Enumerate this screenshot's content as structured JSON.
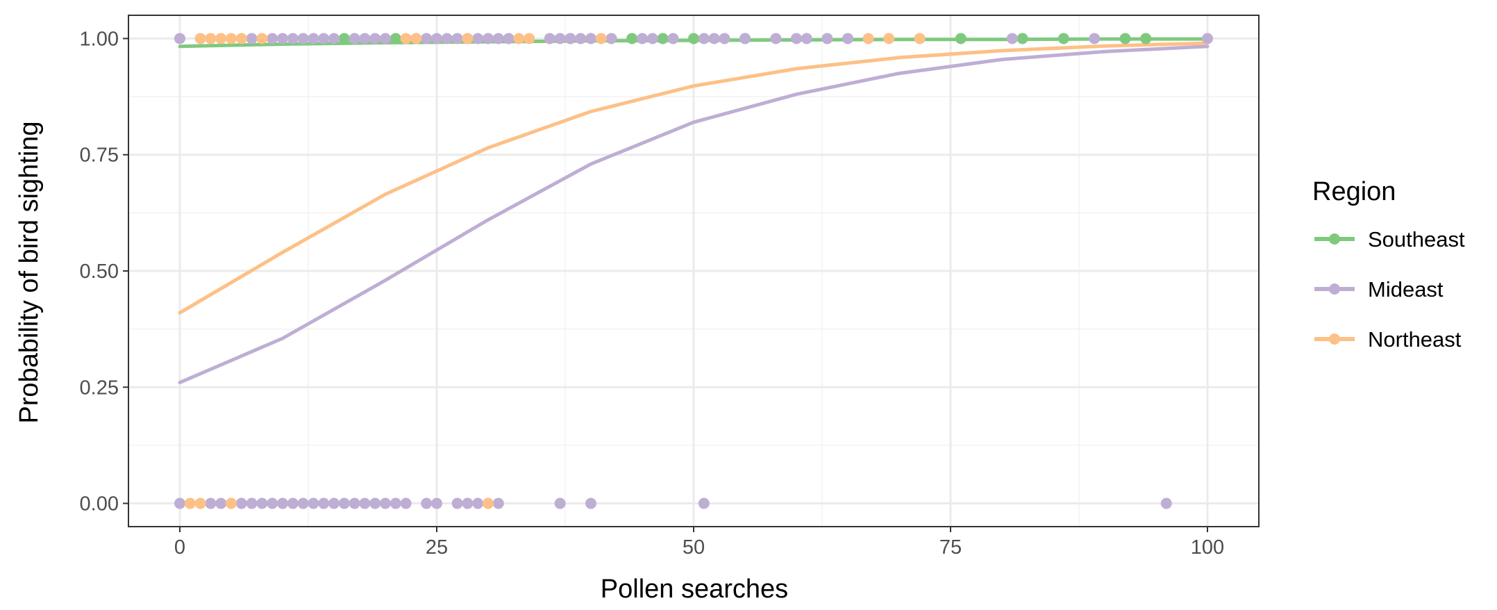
{
  "chart_data": {
    "type": "scatter",
    "title": "",
    "xlabel": "Pollen searches",
    "ylabel": "Probability of bird sighting",
    "xlim": [
      -5,
      105
    ],
    "ylim": [
      -0.05,
      1.05
    ],
    "x_ticks": [
      0,
      25,
      50,
      75,
      100
    ],
    "x_tick_labels": [
      "0",
      "25",
      "50",
      "75",
      "100"
    ],
    "y_ticks": [
      0,
      0.25,
      0.5,
      0.75,
      1
    ],
    "y_tick_labels": [
      "0.00",
      "0.25",
      "0.50",
      "0.75",
      "1.00"
    ],
    "grid": true,
    "legend": {
      "title": "Region",
      "position": "right"
    },
    "series": [
      {
        "name": "Southeast",
        "color": "#7fc97f",
        "curve": {
          "x": [
            0,
            10,
            20,
            30,
            40,
            50,
            60,
            70,
            80,
            90,
            100
          ],
          "y": [
            0.983,
            0.988,
            0.991,
            0.993,
            0.995,
            0.996,
            0.997,
            0.998,
            0.998,
            0.999,
            0.999
          ]
        },
        "points": {
          "x": [
            16,
            21,
            38,
            44,
            47,
            50,
            55,
            76,
            82,
            86,
            92,
            94
          ],
          "y": [
            1,
            1,
            1,
            1,
            1,
            1,
            1,
            1,
            1,
            1,
            1,
            1
          ]
        }
      },
      {
        "name": "Mideast",
        "color": "#beaed4",
        "curve": {
          "x": [
            0,
            10,
            20,
            30,
            40,
            50,
            60,
            70,
            80,
            90,
            100
          ],
          "y": [
            0.26,
            0.355,
            0.48,
            0.61,
            0.73,
            0.82,
            0.88,
            0.925,
            0.955,
            0.972,
            0.983
          ]
        },
        "points": {
          "x": [
            0,
            7,
            9,
            10,
            11,
            12,
            13,
            14,
            15,
            17,
            18,
            19,
            20,
            23,
            24,
            25,
            26,
            27,
            28,
            29,
            30,
            31,
            32,
            36,
            37,
            38,
            39,
            40,
            42,
            45,
            46,
            48,
            51,
            52,
            53,
            55,
            58,
            60,
            61,
            63,
            65,
            81,
            89,
            100,
            0,
            3,
            4,
            6,
            7,
            8,
            9,
            10,
            11,
            12,
            13,
            14,
            15,
            16,
            17,
            18,
            19,
            20,
            21,
            22,
            24,
            25,
            27,
            28,
            29,
            31,
            37,
            40,
            51,
            96
          ],
          "y": [
            1,
            1,
            1,
            1,
            1,
            1,
            1,
            1,
            1,
            1,
            1,
            1,
            1,
            1,
            1,
            1,
            1,
            1,
            1,
            1,
            1,
            1,
            1,
            1,
            1,
            1,
            1,
            1,
            1,
            1,
            1,
            1,
            1,
            1,
            1,
            1,
            1,
            1,
            1,
            1,
            1,
            1,
            1,
            1,
            0,
            0,
            0,
            0,
            0,
            0,
            0,
            0,
            0,
            0,
            0,
            0,
            0,
            0,
            0,
            0,
            0,
            0,
            0,
            0,
            0,
            0,
            0,
            0,
            0,
            0,
            0,
            0,
            0,
            0
          ]
        }
      },
      {
        "name": "Northeast",
        "color": "#fdc086",
        "curve": {
          "x": [
            0,
            10,
            20,
            30,
            40,
            50,
            60,
            70,
            80,
            90,
            100
          ],
          "y": [
            0.41,
            0.54,
            0.665,
            0.765,
            0.843,
            0.898,
            0.935,
            0.959,
            0.974,
            0.984,
            0.99
          ]
        },
        "points": {
          "x": [
            2,
            3,
            4,
            5,
            6,
            8,
            22,
            23,
            28,
            33,
            34,
            41,
            67,
            69,
            72,
            1,
            2,
            5,
            30
          ],
          "y": [
            1,
            1,
            1,
            1,
            1,
            1,
            1,
            1,
            1,
            1,
            1,
            1,
            1,
            1,
            1,
            0,
            0,
            0,
            0
          ]
        }
      }
    ]
  }
}
